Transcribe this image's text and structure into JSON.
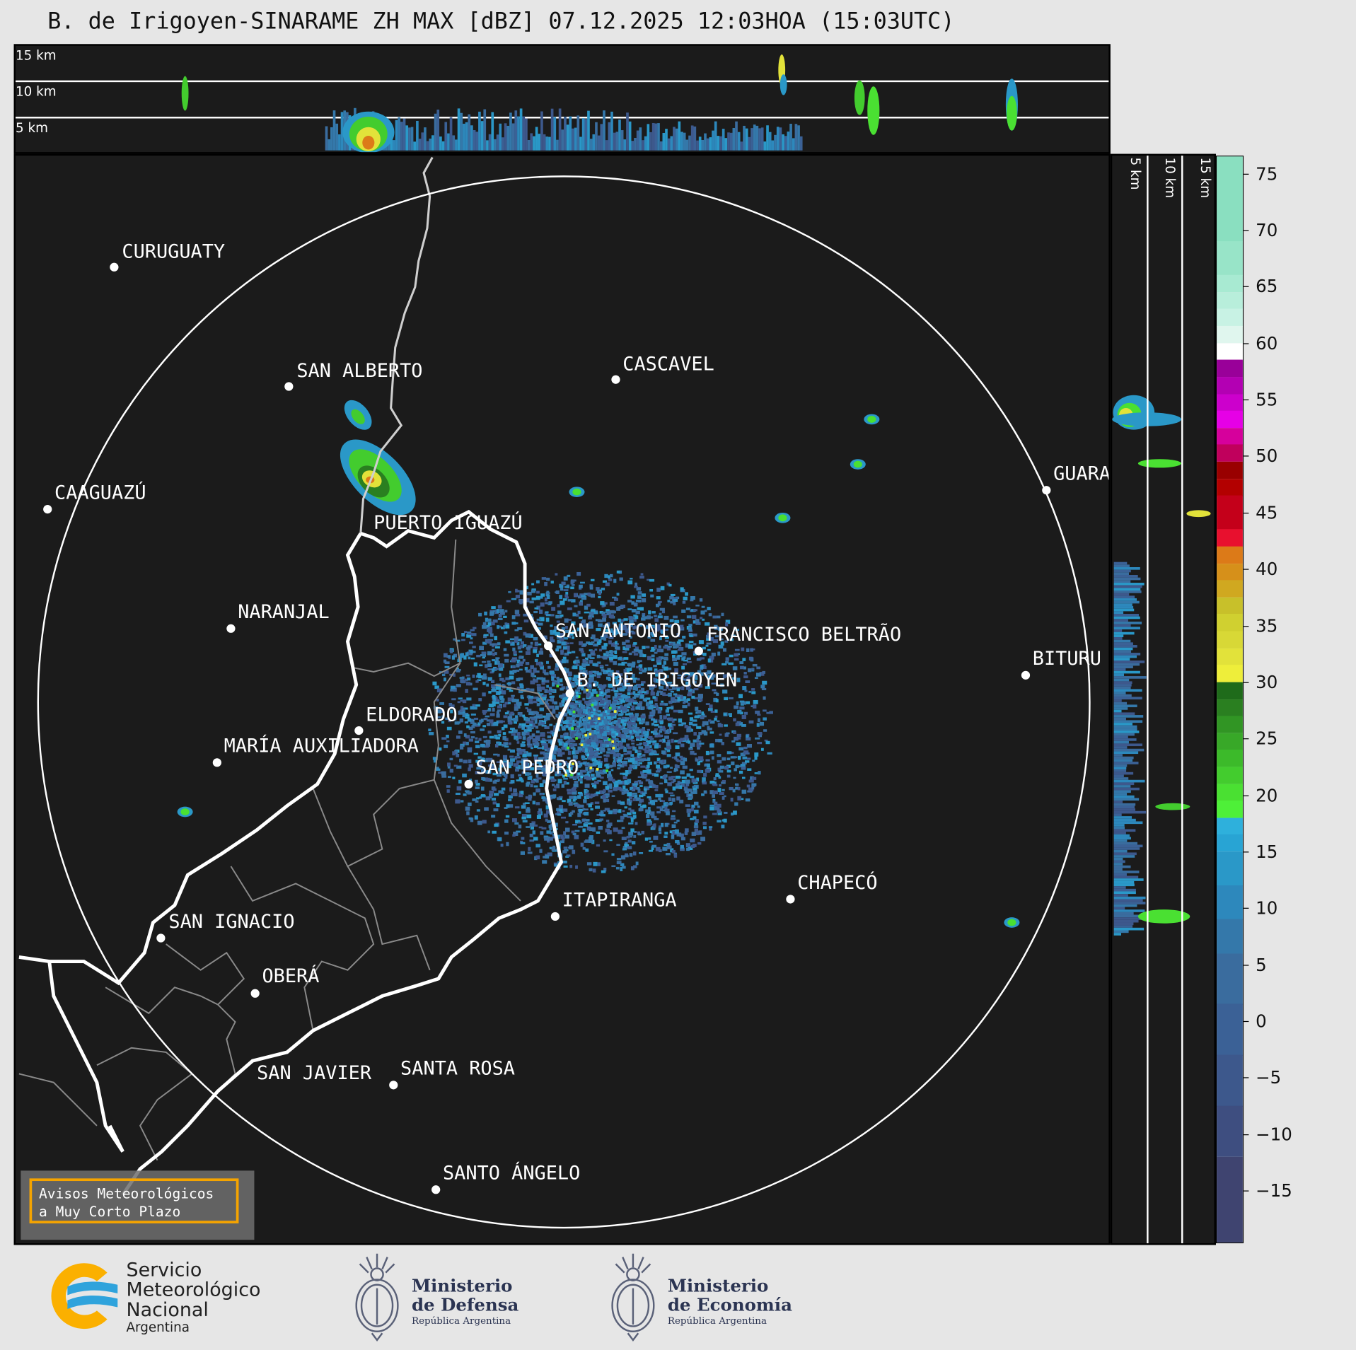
{
  "title": "B. de Irigoyen-SINARAME ZH MAX [dBZ] 07.12.2025 12:03HOA (15:03UTC)",
  "top_panel": {
    "labels": [
      "15 km",
      "10 km",
      "5 km"
    ]
  },
  "side_panel": {
    "labels": [
      "5 km",
      "10 km",
      "15 km"
    ]
  },
  "cities": [
    "CURUGUATY",
    "SAN ALBERTO",
    "CASCAVEL",
    "CAAGUAZÚ",
    "GUARA",
    "PUERTO IGUAZÚ",
    "NARANJAL",
    "SAN ANTONIO",
    "FRANCISCO BELTRÃO",
    "BITURU",
    "B. DE IRIGOYEN",
    "ELDORADO",
    "MARÍA AUXILIADORA",
    "SAN PEDRO",
    "CHAPECÓ",
    "ITAPIRANGA",
    "SAN IGNACIO",
    "OBERÁ",
    "SAN JAVIER",
    "SANTA ROSA",
    "SANTO ÁNGELO"
  ],
  "avisos": {
    "line1": "Avisos Meteorológicos",
    "line2": "a Muy Corto Plazo"
  },
  "colorbar": {
    "unit": "dBZ",
    "range": [
      -19.5,
      76.5
    ],
    "ticks": [
      "75",
      "70",
      "65",
      "60",
      "55",
      "50",
      "45",
      "40",
      "35",
      "30",
      "25",
      "20",
      "15",
      "10",
      "5",
      "0",
      "−5",
      "−10",
      "−15"
    ],
    "tick_values": [
      75,
      70,
      65,
      60,
      55,
      50,
      45,
      40,
      35,
      30,
      25,
      20,
      15,
      10,
      5,
      0,
      -5,
      -10,
      -15
    ],
    "bins": [
      {
        "from": 69,
        "to": 76.5,
        "color": "#8adfc0"
      },
      {
        "from": 66,
        "to": 69,
        "color": "#98e4c8"
      },
      {
        "from": 64.5,
        "to": 66,
        "color": "#a8ead2"
      },
      {
        "from": 63,
        "to": 64.5,
        "color": "#b8eedb"
      },
      {
        "from": 61.5,
        "to": 63,
        "color": "#c8f2e4"
      },
      {
        "from": 60,
        "to": 61.5,
        "color": "#e0f6ee"
      },
      {
        "from": 58.5,
        "to": 60,
        "color": "#ffffff"
      },
      {
        "from": 57,
        "to": 58.5,
        "color": "#990099"
      },
      {
        "from": 55.5,
        "to": 57,
        "color": "#b300b3"
      },
      {
        "from": 54,
        "to": 55.5,
        "color": "#cc00cc"
      },
      {
        "from": 52.5,
        "to": 54,
        "color": "#e600e6"
      },
      {
        "from": 51,
        "to": 52.5,
        "color": "#d6009c"
      },
      {
        "from": 49.5,
        "to": 51,
        "color": "#c0005c"
      },
      {
        "from": 48,
        "to": 49.5,
        "color": "#990000"
      },
      {
        "from": 46.5,
        "to": 48,
        "color": "#b30000"
      },
      {
        "from": 43.5,
        "to": 46.5,
        "color": "#c4001a"
      },
      {
        "from": 42,
        "to": 43.5,
        "color": "#e8102e"
      },
      {
        "from": 40.5,
        "to": 42,
        "color": "#dc7a18"
      },
      {
        "from": 39,
        "to": 40.5,
        "color": "#d6901a"
      },
      {
        "from": 37.5,
        "to": 39,
        "color": "#d0a820"
      },
      {
        "from": 36,
        "to": 37.5,
        "color": "#c8c02a"
      },
      {
        "from": 34.5,
        "to": 36,
        "color": "#d0d030"
      },
      {
        "from": 33,
        "to": 34.5,
        "color": "#d8d836"
      },
      {
        "from": 31.5,
        "to": 33,
        "color": "#e2e23a"
      },
      {
        "from": 30,
        "to": 31.5,
        "color": "#eeee3a"
      },
      {
        "from": 28.5,
        "to": 30,
        "color": "#1f6b1a"
      },
      {
        "from": 27,
        "to": 28.5,
        "color": "#2a7f20"
      },
      {
        "from": 25.5,
        "to": 27,
        "color": "#319524"
      },
      {
        "from": 24,
        "to": 25.5,
        "color": "#38a828"
      },
      {
        "from": 22.5,
        "to": 24,
        "color": "#3cba2a"
      },
      {
        "from": 21,
        "to": 22.5,
        "color": "#43cc2e"
      },
      {
        "from": 19.5,
        "to": 21,
        "color": "#4ae032"
      },
      {
        "from": 18,
        "to": 19.5,
        "color": "#4ef038"
      },
      {
        "from": 16.5,
        "to": 18,
        "color": "#2eb0dc"
      },
      {
        "from": 15,
        "to": 16.5,
        "color": "#28a4d4"
      },
      {
        "from": 12,
        "to": 15,
        "color": "#2a98c8"
      },
      {
        "from": 9,
        "to": 12,
        "color": "#2d88bc"
      },
      {
        "from": 6,
        "to": 9,
        "color": "#3478aa"
      },
      {
        "from": 1.5,
        "to": 6,
        "color": "#3a6c9e"
      },
      {
        "from": -3,
        "to": 1.5,
        "color": "#3b6196"
      },
      {
        "from": -7.5,
        "to": -3,
        "color": "#3d588c"
      },
      {
        "from": -12,
        "to": -7.5,
        "color": "#3e4e80"
      },
      {
        "from": -19.5,
        "to": -12,
        "color": "#3f4470"
      }
    ]
  },
  "logos": {
    "smn": {
      "line1": "Servicio",
      "line2": "Meteorológico",
      "line3": "Nacional",
      "line4": "Argentina"
    },
    "defensa": {
      "line1": "Ministerio",
      "line2": "de Defensa",
      "line3": "República Argentina"
    },
    "economia": {
      "line1": "Ministerio",
      "line2": "de Economía",
      "line3": "República Argentina"
    }
  },
  "colors": {
    "background": "#e6e6e6",
    "map": "#1b1b1b",
    "accent": "#f5a400",
    "logo_navy": "#2b3452"
  }
}
